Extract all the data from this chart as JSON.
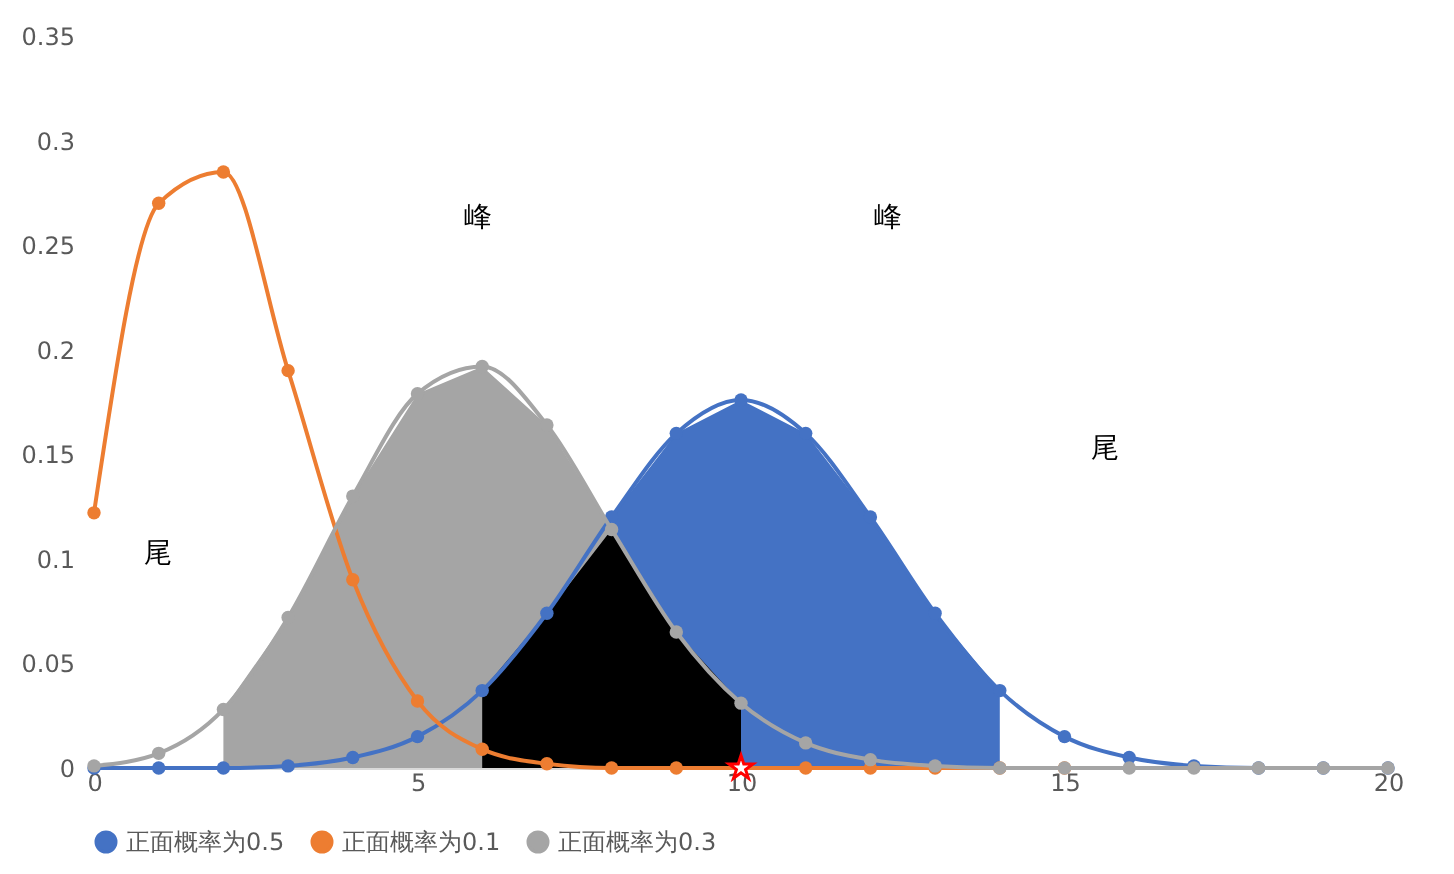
{
  "chart_data": {
    "type": "line",
    "xlim": [
      0,
      20
    ],
    "xticks": [
      0,
      5,
      10,
      15,
      20
    ],
    "ylim": [
      0,
      0.35
    ],
    "yticks": [
      0,
      0.05,
      0.1,
      0.15,
      0.2,
      0.25,
      0.3,
      0.35
    ],
    "grid": false,
    "legend": "bottom",
    "marker": "circle",
    "line_style": "solid",
    "series": [
      {
        "type": "area",
        "color": "#a5a5a5",
        "x": [
          2,
          3,
          4,
          5,
          6,
          7,
          8
        ],
        "values": [
          0.028,
          0.072,
          0.13,
          0.179,
          0.192,
          0.164,
          0.114
        ]
      },
      {
        "type": "area",
        "color": "#4472c4",
        "x": [
          8,
          9,
          10,
          11,
          12,
          13,
          14
        ],
        "values": [
          0.12,
          0.16,
          0.176,
          0.16,
          0.12,
          0.074,
          0.037
        ]
      },
      {
        "type": "area",
        "marker": "none",
        "color": "#000000",
        "x": [
          6,
          7,
          8,
          9,
          10
        ],
        "values": [
          0.037,
          0.074,
          0.114,
          0.065,
          0.031
        ]
      },
      {
        "name": "正面概率为0.5",
        "color": "#4472c4",
        "x": [
          0,
          1,
          2,
          3,
          4,
          5,
          6,
          7,
          8,
          9,
          10,
          11,
          12,
          13,
          14,
          15,
          16,
          17,
          18,
          19,
          20
        ],
        "values": [
          0,
          0,
          0,
          0.001,
          0.005,
          0.015,
          0.037,
          0.074,
          0.12,
          0.16,
          0.176,
          0.16,
          0.12,
          0.074,
          0.037,
          0.015,
          0.005,
          0.001,
          0,
          0,
          0
        ]
      },
      {
        "name": "正面概率为0.1",
        "color": "#ed7d31",
        "x": [
          0,
          1,
          2,
          3,
          4,
          5,
          6,
          7,
          8,
          9,
          10,
          11,
          12,
          13,
          14,
          15
        ],
        "values": [
          0.122,
          0.27,
          0.285,
          0.19,
          0.09,
          0.032,
          0.009,
          0.002,
          0,
          0,
          0,
          0,
          0,
          0,
          0,
          0
        ]
      },
      {
        "name": "正面概率为0.3",
        "color": "#a5a5a5",
        "x": [
          0,
          1,
          2,
          3,
          4,
          5,
          6,
          7,
          8,
          9,
          10,
          11,
          12,
          13,
          14,
          15,
          16,
          17,
          18,
          19,
          20
        ],
        "values": [
          0.001,
          0.007,
          0.028,
          0.072,
          0.13,
          0.179,
          0.192,
          0.164,
          0.114,
          0.065,
          0.031,
          0.012,
          0.004,
          0.001,
          0,
          0,
          0,
          0,
          0,
          0,
          0
        ]
      },
      {
        "type": "scatter",
        "marker": "star",
        "color": "#ff0000",
        "x": [
          10
        ],
        "values": [
          0
        ]
      }
    ],
    "annotations": [
      "峰",
      "峰",
      "尾",
      "尾"
    ]
  }
}
